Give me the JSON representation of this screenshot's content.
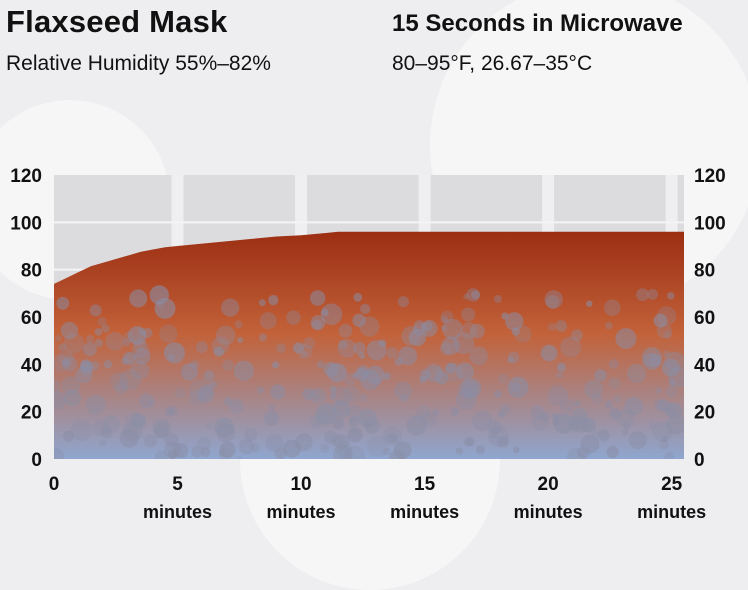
{
  "header": {
    "title": "Flaxseed Mask",
    "subtitle": "Relative Humidity 55%–82%",
    "right_title": "15 Seconds in Microwave",
    "right_subtitle": "80–95°F, 26.67–35°C"
  },
  "colors": {
    "fill_top": "#9c2e12",
    "fill_mid": "#c2623a",
    "fill_bottom": "#8fa6cf",
    "plot_bg": "#dcdcdf",
    "gridline": "#f4f4f6"
  },
  "chart_data": {
    "type": "area",
    "title": "Flaxseed Mask",
    "xlabel": "",
    "ylabel": "",
    "x_unit_label": "minutes",
    "xlim": [
      0,
      25.5
    ],
    "ylim": [
      0,
      120
    ],
    "x_ticks": [
      0,
      5,
      10,
      15,
      20,
      25
    ],
    "x_tick_units": [
      "",
      "minutes",
      "minutes",
      "minutes",
      "minutes",
      "minutes"
    ],
    "y_ticks": [
      0,
      20,
      40,
      60,
      80,
      100,
      120
    ],
    "y_axes": "left-and-right",
    "grid": true,
    "series": [
      {
        "x": [
          0,
          0.5,
          1,
          1.5,
          2,
          2.5,
          3,
          3.5,
          4,
          4.5,
          5,
          6,
          7,
          8,
          9,
          10,
          11,
          11.5,
          12,
          15,
          20,
          25.5
        ],
        "values": [
          74,
          76.5,
          79,
          81.5,
          83,
          84.5,
          86,
          87.5,
          88.5,
          89.5,
          90,
          91,
          92,
          93,
          94,
          94.5,
          95.5,
          96,
          96,
          96,
          96,
          96
        ]
      }
    ]
  }
}
